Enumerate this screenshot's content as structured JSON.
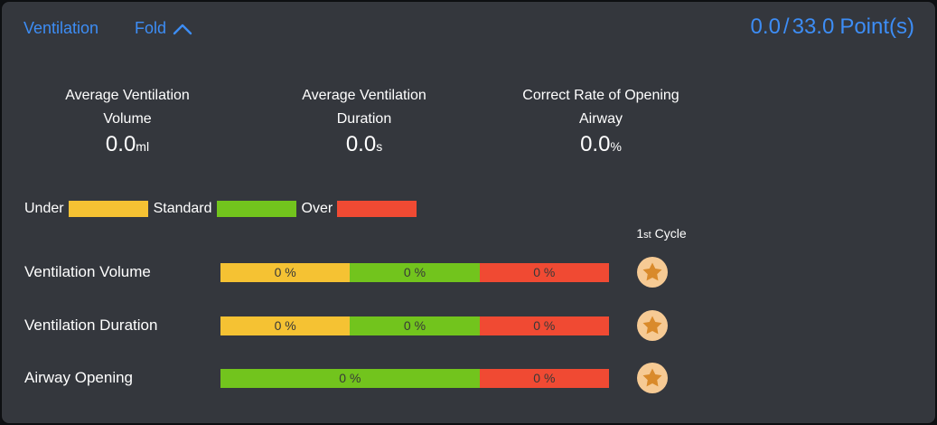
{
  "header": {
    "title": "Ventilation",
    "fold_label": "Fold",
    "score": {
      "current": "0.0",
      "separator": "/",
      "total": "33.0",
      "unit": "Point(s)"
    }
  },
  "stats": [
    {
      "line1": "Average Ventilation",
      "line2": "Volume",
      "value": "0.0",
      "unit": "ml"
    },
    {
      "line1": "Average Ventilation",
      "line2": "Duration",
      "value": "0.0",
      "unit": "s"
    },
    {
      "line1": "Correct Rate of Opening",
      "line2": "Airway",
      "value": "0.0",
      "unit": "%"
    }
  ],
  "legend": [
    {
      "label": "Under",
      "color": "#f5c233"
    },
    {
      "label": "Standard",
      "color": "#72c41d"
    },
    {
      "label": "Over",
      "color": "#f04a33"
    }
  ],
  "cycle_header": {
    "number": "1",
    "ordinal": "st",
    "label": "Cycle"
  },
  "rows": [
    {
      "label": "Ventilation Volume",
      "segments": [
        {
          "text": "0 %",
          "color": "#f5c233",
          "flex": 1
        },
        {
          "text": "0 %",
          "color": "#72c41d",
          "flex": 1
        },
        {
          "text": "0 %",
          "color": "#f04a33",
          "flex": 1
        }
      ],
      "badge": "star"
    },
    {
      "label": "Ventilation Duration",
      "segments": [
        {
          "text": "0 %",
          "color": "#f5c233",
          "flex": 1
        },
        {
          "text": "0 %",
          "color": "#72c41d",
          "flex": 1
        },
        {
          "text": "0 %",
          "color": "#f04a33",
          "flex": 1
        }
      ],
      "badge": "star"
    },
    {
      "label": "Airway Opening",
      "segments": [
        {
          "text": "0 %",
          "color": "#72c41d",
          "flex": 2
        },
        {
          "text": "0 %",
          "color": "#f04a33",
          "flex": 1
        }
      ],
      "badge": "star"
    }
  ],
  "row_tops": [
    281,
    340,
    398
  ],
  "colors": {
    "accent_blue": "#3d8df5",
    "panel_bg": "#34373d",
    "page_bg": "#0e1013",
    "bar_text": "#383838",
    "badge_circle": "#f6ca94",
    "badge_star": "#d98a2b",
    "text_white": "#ffffff"
  }
}
